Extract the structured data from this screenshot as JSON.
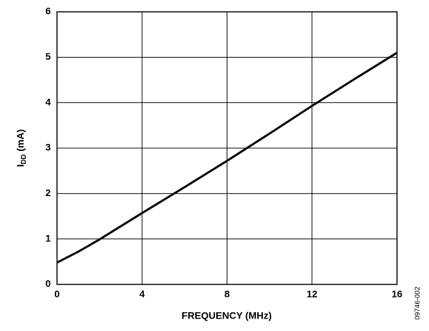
{
  "chart_data": {
    "type": "line",
    "x": [
      0,
      1,
      2,
      4,
      6,
      8,
      10,
      12,
      14,
      16
    ],
    "values": [
      0.48,
      0.72,
      0.99,
      1.57,
      2.14,
      2.72,
      3.32,
      3.93,
      4.52,
      5.1
    ],
    "color": "#000000",
    "xlim": [
      0,
      16
    ],
    "xticks": [
      0,
      4,
      8,
      12,
      16
    ],
    "ylim": [
      0,
      6
    ],
    "yticks": [
      0,
      1,
      2,
      3,
      4,
      5,
      6
    ],
    "grid": true,
    "xlabel": "FREQUENCY (MHz)",
    "ylabel": {
      "main": "I",
      "sub": "DD",
      "unit": "(mA)"
    },
    "side_note": "09746-002"
  }
}
